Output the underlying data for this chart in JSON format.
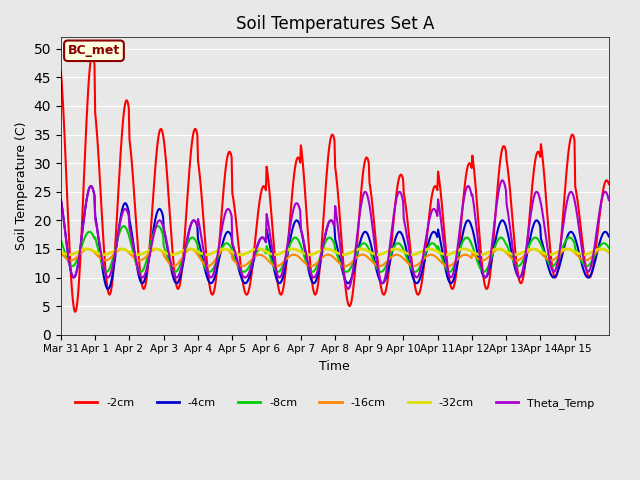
{
  "title": "Soil Temperatures Set A",
  "xlabel": "Time",
  "ylabel": "Soil Temperature (C)",
  "ylim": [
    0,
    52
  ],
  "yticks": [
    0,
    5,
    10,
    15,
    20,
    25,
    30,
    35,
    40,
    45,
    50
  ],
  "background_color": "#e8e8e8",
  "plot_bg_color": "#e8e8e8",
  "annotation": "BC_met",
  "series": {
    "-2cm": {
      "color": "#ff0000",
      "lw": 1.5
    },
    "-4cm": {
      "color": "#0000cc",
      "lw": 1.5
    },
    "-8cm": {
      "color": "#00cc00",
      "lw": 1.5
    },
    "-16cm": {
      "color": "#ff8800",
      "lw": 1.5
    },
    "-32cm": {
      "color": "#dddd00",
      "lw": 2.0
    },
    "Theta_Temp": {
      "color": "#aa00cc",
      "lw": 1.5
    }
  },
  "legend_order": [
    "-2cm",
    "-4cm",
    "-8cm",
    "-16cm",
    "-32cm",
    "Theta_Temp"
  ],
  "xtick_labels": [
    "Mar 31",
    "Apr 1",
    "Apr 2",
    "Apr 3",
    "Apr 4",
    "Apr 5",
    "Apr 6",
    "Apr 7",
    "Apr 8",
    "Apr 9",
    "Apr 10",
    "Apr 11",
    "Apr 12",
    "Apr 13",
    "Apr 14",
    "Apr 15"
  ],
  "peak_amps_2cm": [
    49,
    41,
    36,
    36,
    32,
    26,
    31,
    35,
    31,
    28,
    26,
    30,
    33,
    32,
    35,
    27
  ],
  "min_vals_2cm": [
    4,
    7,
    8,
    8,
    7,
    7,
    7,
    7,
    5,
    7,
    7,
    8,
    8,
    9,
    10,
    10
  ],
  "peak_amps_4cm": [
    26,
    23,
    22,
    20,
    18,
    17,
    20,
    20,
    18,
    18,
    18,
    20,
    20,
    20,
    18,
    18
  ],
  "min_vals_4cm": [
    10,
    8,
    9,
    9,
    9,
    9,
    9,
    9,
    9,
    9,
    9,
    9,
    10,
    10,
    10,
    10
  ],
  "peak_amps_8cm": [
    18,
    19,
    19,
    17,
    16,
    15,
    17,
    17,
    16,
    16,
    16,
    17,
    17,
    17,
    17,
    16
  ],
  "min_vals_8cm": [
    12,
    11,
    11,
    11,
    11,
    11,
    11,
    11,
    11,
    11,
    11,
    11,
    11,
    12,
    12,
    12
  ],
  "peak_amps_16cm": [
    15,
    15,
    15,
    15,
    15,
    14,
    14,
    14,
    14,
    14,
    14,
    14,
    15,
    15,
    15,
    15
  ],
  "min_vals_16cm": [
    13,
    13,
    13,
    12,
    12,
    12,
    12,
    12,
    12,
    12,
    12,
    12,
    13,
    13,
    13,
    13
  ],
  "peak_amps_32cm": [
    15,
    15,
    15,
    15,
    15,
    15,
    15,
    15,
    15,
    15,
    15,
    15,
    15,
    15,
    15,
    15
  ],
  "min_vals_32cm": [
    14,
    14,
    14,
    14,
    14,
    14,
    14,
    14,
    14,
    14,
    14,
    14,
    14,
    14,
    14,
    14
  ],
  "peak_amps_theta": [
    26,
    22,
    20,
    20,
    22,
    17,
    23,
    20,
    25,
    25,
    22,
    26,
    27,
    25,
    25,
    25
  ],
  "min_vals_theta": [
    10,
    10,
    10,
    10,
    10,
    10,
    10,
    10,
    8,
    9,
    10,
    10,
    10,
    10,
    11,
    11
  ]
}
